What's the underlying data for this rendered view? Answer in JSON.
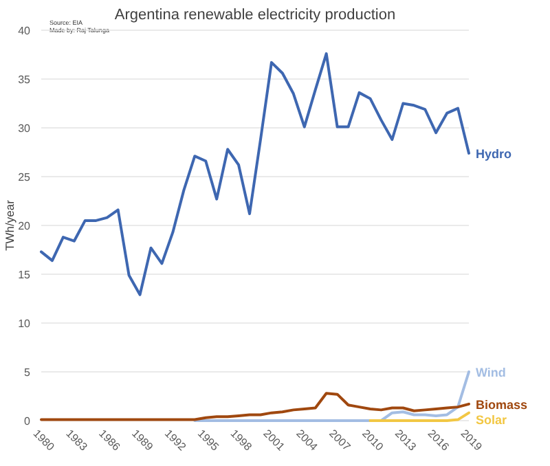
{
  "chart_data": {
    "type": "line",
    "title": "Argentina renewable electricity production",
    "ylabel": "TWh/year",
    "annotations": [
      "Source: EIA",
      "Made by: Raj Talunga"
    ],
    "x": [
      1980,
      1981,
      1982,
      1983,
      1984,
      1985,
      1986,
      1987,
      1988,
      1989,
      1990,
      1991,
      1992,
      1993,
      1994,
      1995,
      1996,
      1997,
      1998,
      1999,
      2000,
      2001,
      2002,
      2003,
      2004,
      2005,
      2006,
      2007,
      2008,
      2009,
      2010,
      2011,
      2012,
      2013,
      2014,
      2015,
      2016,
      2017,
      2018,
      2019
    ],
    "series": [
      {
        "name": "Hydro",
        "color": "#3e67b1",
        "values": [
          17.3,
          16.4,
          18.8,
          18.4,
          20.5,
          20.5,
          20.8,
          21.6,
          14.9,
          12.9,
          17.7,
          16.1,
          19.3,
          23.6,
          27.1,
          26.6,
          22.7,
          27.8,
          26.2,
          21.2,
          28.8,
          36.7,
          35.6,
          33.5,
          30.1,
          33.9,
          37.6,
          30.1,
          30.1,
          33.6,
          33.0,
          30.8,
          28.8,
          32.5,
          32.3,
          31.9,
          29.5,
          31.5,
          32.0,
          27.4
        ]
      },
      {
        "name": "Wind",
        "color": "#a3bde3",
        "values": [
          null,
          null,
          null,
          null,
          null,
          null,
          null,
          null,
          null,
          null,
          null,
          null,
          null,
          null,
          0,
          0,
          0,
          0,
          0,
          0,
          0,
          0,
          0,
          0,
          0,
          0,
          0,
          0,
          0,
          0,
          0,
          0,
          0.8,
          0.9,
          0.6,
          0.6,
          0.5,
          0.6,
          1.4,
          5.0
        ]
      },
      {
        "name": "Biomass",
        "color": "#a0480f",
        "values": [
          0.1,
          0.1,
          0.1,
          0.1,
          0.1,
          0.1,
          0.1,
          0.1,
          0.1,
          0.1,
          0.1,
          0.1,
          0.1,
          0.1,
          0.1,
          0.3,
          0.4,
          0.4,
          0.5,
          0.6,
          0.6,
          0.8,
          0.9,
          1.1,
          1.2,
          1.3,
          2.8,
          2.7,
          1.6,
          1.4,
          1.2,
          1.1,
          1.3,
          1.3,
          1.0,
          1.1,
          1.2,
          1.3,
          1.4,
          1.7
        ]
      },
      {
        "name": "Solar",
        "color": "#f2c744",
        "values": [
          null,
          null,
          null,
          null,
          null,
          null,
          null,
          null,
          null,
          null,
          null,
          null,
          null,
          null,
          null,
          null,
          null,
          null,
          null,
          null,
          null,
          null,
          null,
          null,
          null,
          null,
          null,
          null,
          null,
          null,
          0,
          0,
          0,
          0,
          0,
          0,
          0,
          0,
          0.1,
          0.8
        ]
      }
    ],
    "xlim": [
      1980,
      2019
    ],
    "xticks": [
      1980,
      1983,
      1986,
      1989,
      1992,
      1995,
      1998,
      2001,
      2004,
      2007,
      2010,
      2013,
      2016,
      2019
    ],
    "ylim": [
      0,
      40
    ],
    "yticks": [
      0,
      5,
      10,
      15,
      20,
      25,
      30,
      35,
      40
    ],
    "grid": "y",
    "line_style": "solid",
    "marker": "none"
  }
}
